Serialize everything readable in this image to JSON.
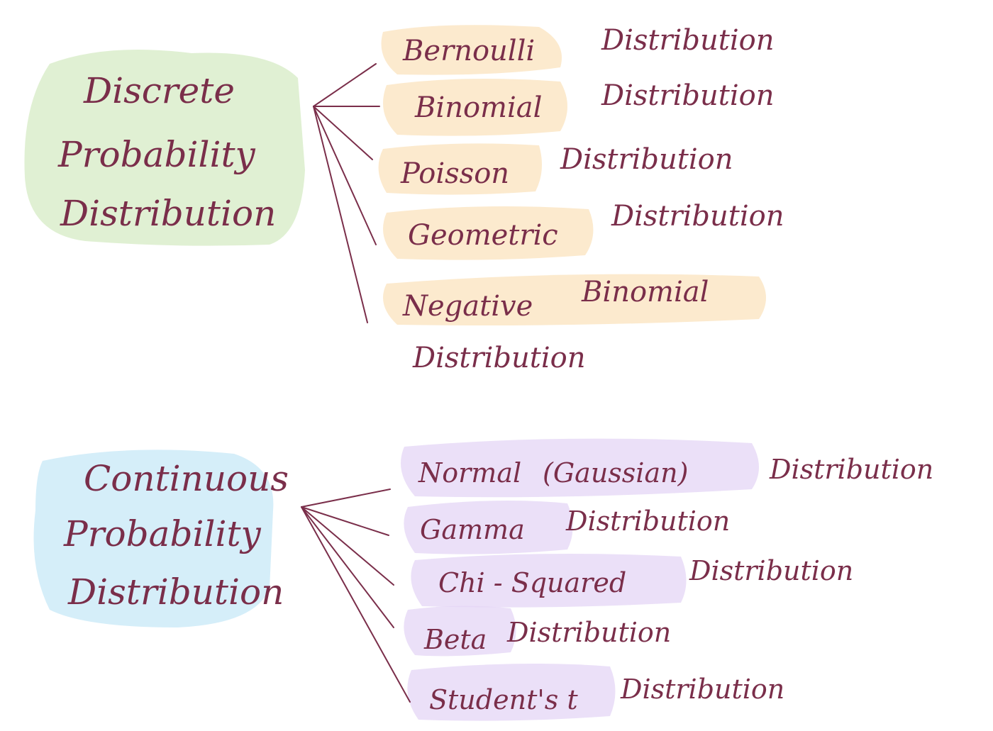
{
  "colors": {
    "ink": "#7a2e4a",
    "discrete_highlight": "#d6ebc4",
    "continuous_highlight": "#c7e8f7",
    "discrete_item_highlight": "#fbe3bd",
    "continuous_item_highlight": "#e4d6f6"
  },
  "groups": [
    {
      "title_lines": [
        "Discrete",
        "Probability",
        "Distribution"
      ],
      "items": [
        [
          "Bernoulli",
          "Distribution"
        ],
        [
          "Binomial",
          "Distribution"
        ],
        [
          "Poisson",
          "Distribution"
        ],
        [
          "Geometric",
          "Distribution"
        ],
        [
          "Negative",
          "Binomial",
          "Distribution"
        ]
      ]
    },
    {
      "title_lines": [
        "Continuous",
        "Probability",
        "Distribution"
      ],
      "items": [
        [
          "Normal",
          "(Gaussian)",
          "Distribution"
        ],
        [
          "Gamma",
          "Distribution"
        ],
        [
          "Chi - Squared",
          "Distribution"
        ],
        [
          "Beta",
          "Distribution"
        ],
        [
          "Student's t",
          "Distribution"
        ]
      ]
    }
  ]
}
